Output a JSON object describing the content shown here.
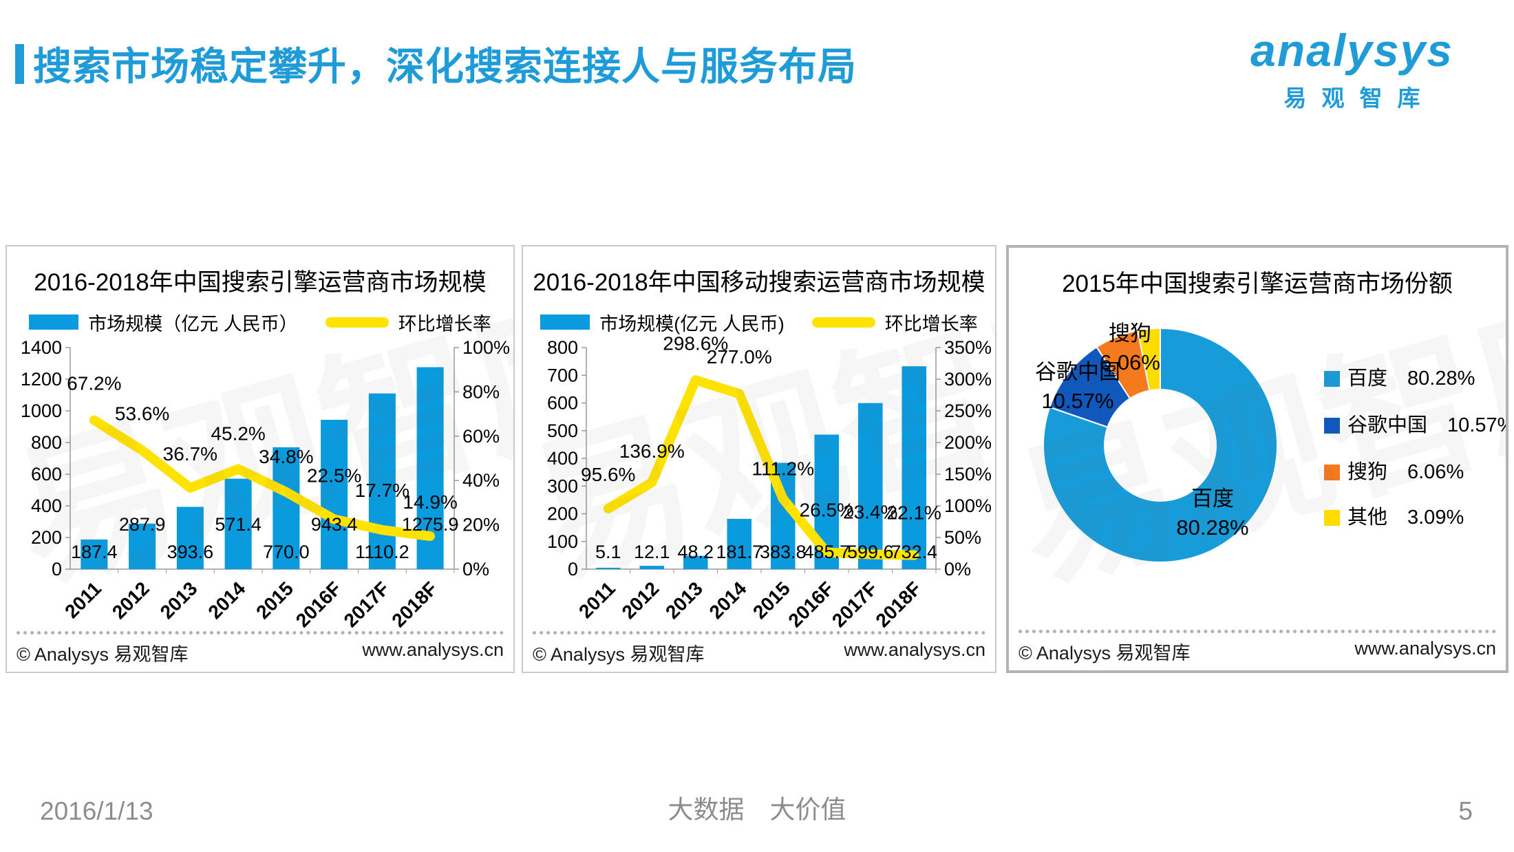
{
  "header": {
    "title": "搜索市场稳定攀升，深化搜索连接人与服务布局",
    "logo": {
      "wordmark": "analysys",
      "cn": "易观智库"
    }
  },
  "panel_footer": {
    "copyright": "© Analysys 易观智库",
    "url": "www.analysys.cn"
  },
  "slide_footer": {
    "date": "2016/1/13",
    "slogan": "大数据　大价值",
    "page": "5"
  },
  "colors": {
    "accent": "#1F9CD8",
    "bar": "#0A9BDF",
    "line": "#FFE300",
    "axis": "#999999",
    "watermark_text": "易观智库"
  },
  "chart_data": [
    {
      "type": "bar",
      "title": "2016-2018年中国搜索引擎运营商市场规模",
      "categories": [
        "2011",
        "2012",
        "2013",
        "2014",
        "2015",
        "2016F",
        "2017F",
        "2018F"
      ],
      "series": [
        {
          "name": "市场规模（亿元 人民币）",
          "type": "bar",
          "values": [
            187.4,
            287.9,
            393.6,
            571.4,
            770.0,
            943.4,
            1110.2,
            1275.9
          ],
          "labels": [
            "187.4",
            "287.9",
            "393.6",
            "571.4",
            "770.0",
            "943.4",
            "1110.2",
            "1275.9"
          ]
        },
        {
          "name": "环比增长率",
          "type": "line",
          "values": [
            67.2,
            53.6,
            36.7,
            45.2,
            34.8,
            22.5,
            17.7,
            14.9
          ],
          "labels": [
            "67.2%",
            "53.6%",
            "36.7%",
            "45.2%",
            "34.8%",
            "22.5%",
            "17.7%",
            "14.9%"
          ]
        }
      ],
      "left_axis": {
        "min": 0,
        "max": 1400,
        "step": 200,
        "suffix": ""
      },
      "right_axis": {
        "min": 0,
        "max": 100,
        "step": 20,
        "suffix": "%"
      },
      "layout_hints": {
        "bar_label_rows": "alternate",
        "line_label_dy": [
          -44,
          -44,
          -40,
          -42,
          -42,
          -54,
          -48,
          -40
        ],
        "grid": false,
        "legend_position": "top"
      }
    },
    {
      "type": "bar",
      "title": "2016-2018年中国移动搜索运营商市场规模",
      "categories": [
        "2011",
        "2012",
        "2013",
        "2014",
        "2015",
        "2016F",
        "2017F",
        "2018F"
      ],
      "series": [
        {
          "name": "市场规模(亿元 人民币)",
          "type": "bar",
          "values": [
            5.1,
            12.1,
            48.2,
            181.7,
            383.8,
            485.7,
            599.6,
            732.4
          ],
          "labels": [
            "5.1",
            "12.1",
            "48.2",
            "181.7",
            "383.8",
            "485.7",
            "599.6",
            "732.4"
          ]
        },
        {
          "name": "环比增长率",
          "type": "line",
          "values": [
            95.6,
            136.9,
            298.6,
            277.0,
            111.2,
            26.5,
            23.4,
            22.1
          ],
          "labels": [
            "95.6%",
            "136.9%",
            "298.6%",
            "277.0%",
            "111.2%",
            "26.5%",
            "23.4%",
            "22.1%"
          ]
        }
      ],
      "left_axis": {
        "min": 0,
        "max": 800,
        "step": 100,
        "suffix": ""
      },
      "right_axis": {
        "min": 0,
        "max": 350,
        "step": 50,
        "suffix": "%"
      },
      "layout_hints": {
        "bar_label_rows": "single",
        "line_label_dy": [
          -40,
          -36,
          -44,
          -44,
          -34,
          -52,
          -52,
          -52
        ],
        "grid": false,
        "legend_position": "top"
      }
    },
    {
      "type": "pie",
      "title": "2015年中国搜索引擎运营商市场份额",
      "segments": [
        {
          "label": "百度",
          "value": 80.28,
          "display": "80.28%",
          "color": "#189CD9"
        },
        {
          "label": "谷歌中国",
          "value": 10.57,
          "display": "10.57%",
          "color": "#1058BC"
        },
        {
          "label": "搜狗",
          "value": 6.06,
          "display": "6.06%",
          "color": "#F5791D"
        },
        {
          "label": "其他",
          "value": 3.09,
          "display": "3.09%",
          "color": "#FFDC00"
        }
      ],
      "layout_hints": {
        "donut": true,
        "start_angle_deg": 0,
        "clockwise": true,
        "legend_position": "right"
      }
    }
  ]
}
